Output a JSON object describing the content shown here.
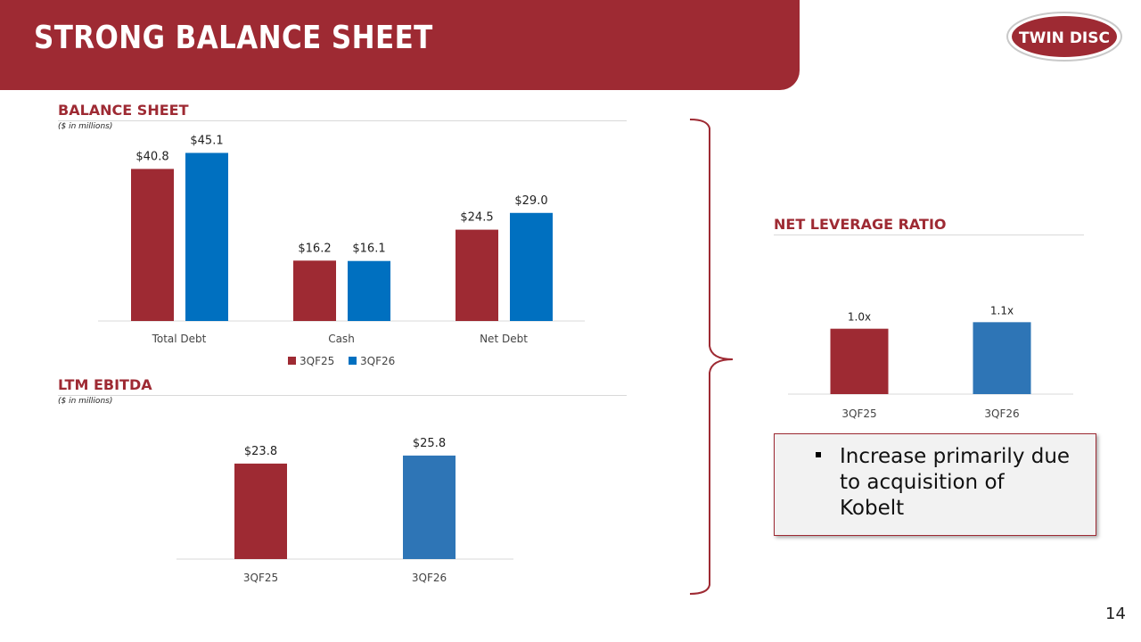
{
  "header": {
    "title": "STRONG BALANCE SHEET",
    "logo_text": "TWIN DISC"
  },
  "balance_sheet": {
    "section_title": "BALANCE SHEET",
    "subtitle": "($ in millions)"
  },
  "ltm_ebitda": {
    "section_title": "LTM EBITDA",
    "subtitle": "($ in millions)"
  },
  "net_leverage": {
    "section_title": "NET LEVERAGE RATIO"
  },
  "callout": {
    "bullet": "Increase primarily due to acquisition of Kobelt"
  },
  "page_number": "14",
  "colors": {
    "brand_red": "#9e2a33",
    "series_blue": "#0070c0",
    "series_blue_light": "#2e75b6"
  },
  "chart_data": [
    {
      "type": "bar",
      "categories": [
        "Total Debt",
        "Cash",
        "Net Debt"
      ],
      "series": [
        {
          "name": "3QF25",
          "values": [
            40.8,
            16.2,
            24.5
          ],
          "labels": [
            "$40.8",
            "$16.2",
            "$24.5"
          ],
          "color": "#9e2a33"
        },
        {
          "name": "3QF26",
          "values": [
            45.1,
            16.1,
            29.0
          ],
          "labels": [
            "$45.1",
            "$16.1",
            "$29.0"
          ],
          "color": "#0070c0"
        }
      ],
      "legend": "bottom",
      "ylim": [
        0,
        50
      ]
    },
    {
      "type": "bar",
      "categories": [
        "3QF25",
        "3QF26"
      ],
      "values": [
        23.8,
        25.8
      ],
      "labels": [
        "$23.8",
        "$25.8"
      ],
      "colors": [
        "#9e2a33",
        "#2e75b6"
      ],
      "ylim": [
        0,
        28
      ]
    },
    {
      "type": "bar",
      "categories": [
        "3QF25",
        "3QF26"
      ],
      "values": [
        1.0,
        1.1
      ],
      "labels": [
        "1.0x",
        "1.1x"
      ],
      "colors": [
        "#9e2a33",
        "#2e75b6"
      ],
      "ylim": [
        0,
        1.2
      ]
    }
  ]
}
